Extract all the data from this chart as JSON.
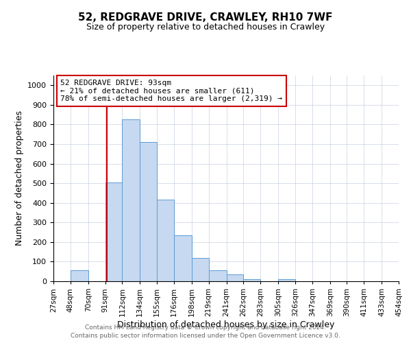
{
  "title": "52, REDGRAVE DRIVE, CRAWLEY, RH10 7WF",
  "subtitle": "Size of property relative to detached houses in Crawley",
  "xlabel": "Distribution of detached houses by size in Crawley",
  "ylabel": "Number of detached properties",
  "bar_values": [
    0,
    57,
    0,
    505,
    825,
    710,
    415,
    233,
    118,
    57,
    35,
    12,
    0,
    12,
    0,
    0,
    0,
    0,
    0,
    0
  ],
  "bin_edges": [
    27,
    48,
    70,
    91,
    112,
    134,
    155,
    176,
    198,
    219,
    241,
    262,
    283,
    305,
    326,
    347,
    369,
    390,
    411,
    433,
    454
  ],
  "bin_labels": [
    "27sqm",
    "48sqm",
    "70sqm",
    "91sqm",
    "112sqm",
    "134sqm",
    "155sqm",
    "176sqm",
    "198sqm",
    "219sqm",
    "241sqm",
    "262sqm",
    "283sqm",
    "305sqm",
    "326sqm",
    "347sqm",
    "369sqm",
    "390sqm",
    "411sqm",
    "433sqm",
    "454sqm"
  ],
  "bar_color": "#c6d9f0",
  "bar_edge_color": "#5b9bd5",
  "property_line_x": 93,
  "property_line_color": "#cc0000",
  "annotation_line1": "52 REDGRAVE DRIVE: 93sqm",
  "annotation_line2": "← 21% of detached houses are smaller (611)",
  "annotation_line3": "78% of semi-detached houses are larger (2,319) →",
  "annotation_box_color": "#ffffff",
  "annotation_box_edge": "#cc0000",
  "ylim": [
    0,
    1050
  ],
  "yticks": [
    0,
    100,
    200,
    300,
    400,
    500,
    600,
    700,
    800,
    900,
    1000
  ],
  "footer1": "Contains HM Land Registry data © Crown copyright and database right 2024.",
  "footer2": "Contains public sector information licensed under the Open Government Licence v3.0.",
  "background_color": "#ffffff",
  "grid_color": "#c8d0e0"
}
